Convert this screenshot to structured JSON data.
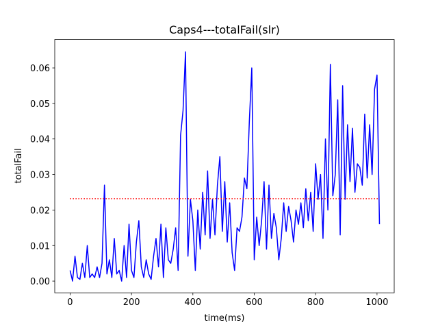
{
  "chart_data": {
    "type": "line",
    "title": "Caps4---totalFail(slr)",
    "xlabel": "time(ms)",
    "ylabel": "totalFail",
    "x": [
      0,
      8,
      16,
      24,
      32,
      40,
      48,
      56,
      64,
      72,
      80,
      88,
      96,
      104,
      112,
      120,
      128,
      136,
      144,
      152,
      160,
      168,
      176,
      184,
      192,
      200,
      208,
      216,
      224,
      232,
      240,
      248,
      256,
      264,
      272,
      280,
      288,
      296,
      304,
      312,
      320,
      328,
      336,
      344,
      352,
      360,
      368,
      376,
      384,
      392,
      400,
      408,
      416,
      424,
      432,
      440,
      448,
      456,
      464,
      472,
      480,
      488,
      496,
      504,
      512,
      520,
      528,
      536,
      544,
      552,
      560,
      568,
      576,
      584,
      592,
      600,
      608,
      616,
      624,
      632,
      640,
      648,
      656,
      664,
      672,
      680,
      688,
      696,
      704,
      712,
      720,
      728,
      736,
      744,
      752,
      760,
      768,
      776,
      784,
      792,
      800,
      808,
      816,
      824,
      832,
      840,
      848,
      856,
      864,
      872,
      880,
      888,
      896,
      904,
      912,
      920,
      928,
      936,
      944,
      952,
      960,
      968,
      976,
      984,
      992,
      1000,
      1008
    ],
    "series": [
      {
        "color": "#0000ff",
        "values": [
          0.003,
          0.0,
          0.007,
          0.001,
          0.0005,
          0.005,
          0.001,
          0.01,
          0.001,
          0.002,
          0.001,
          0.004,
          0.001,
          0.005,
          0.027,
          0.002,
          0.006,
          0.001,
          0.012,
          0.002,
          0.003,
          0.0,
          0.01,
          0.001,
          0.016,
          0.003,
          0.001,
          0.011,
          0.017,
          0.004,
          0.001,
          0.006,
          0.002,
          0.0005,
          0.007,
          0.012,
          0.004,
          0.016,
          0.001,
          0.015,
          0.006,
          0.005,
          0.009,
          0.015,
          0.003,
          0.041,
          0.048,
          0.0645,
          0.007,
          0.023,
          0.017,
          0.003,
          0.02,
          0.009,
          0.025,
          0.013,
          0.031,
          0.012,
          0.023,
          0.013,
          0.027,
          0.035,
          0.014,
          0.028,
          0.011,
          0.022,
          0.008,
          0.003,
          0.015,
          0.014,
          0.018,
          0.029,
          0.026,
          0.045,
          0.06,
          0.006,
          0.018,
          0.01,
          0.017,
          0.028,
          0.009,
          0.027,
          0.012,
          0.019,
          0.015,
          0.006,
          0.012,
          0.022,
          0.014,
          0.021,
          0.017,
          0.011,
          0.02,
          0.016,
          0.022,
          0.015,
          0.026,
          0.017,
          0.025,
          0.014,
          0.033,
          0.023,
          0.03,
          0.012,
          0.04,
          0.02,
          0.061,
          0.024,
          0.03,
          0.051,
          0.013,
          0.055,
          0.023,
          0.044,
          0.028,
          0.043,
          0.025,
          0.033,
          0.032,
          0.027,
          0.047,
          0.029,
          0.044,
          0.03,
          0.054,
          0.058,
          0.016
        ]
      }
    ],
    "reference_line": {
      "y": 0.0232,
      "x": [
        0,
        1008
      ],
      "color": "#ff0000"
    },
    "xlim": [
      -50,
      1056
    ],
    "ylim": [
      -0.0033,
      0.068
    ],
    "xticks": [
      0,
      200,
      400,
      600,
      800,
      1000
    ],
    "yticks": [
      {
        "value": 0,
        "label": "0.00"
      },
      0.01,
      0.02,
      0.03,
      0.04,
      0.05,
      0.06
    ]
  }
}
